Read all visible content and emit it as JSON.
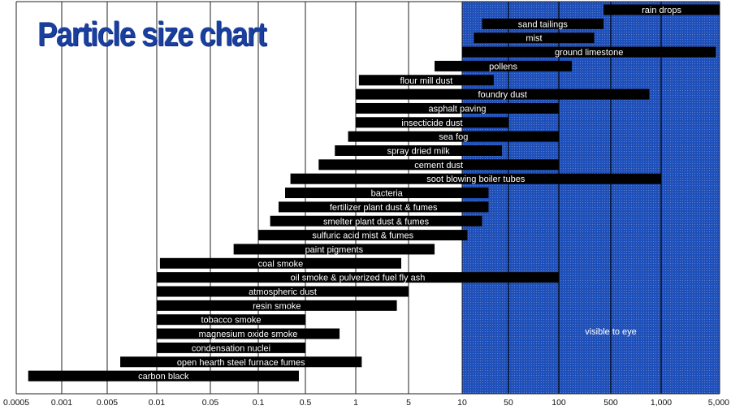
{
  "title": "Particle size chart",
  "chart_data": {
    "type": "bar",
    "orientation": "horizontal",
    "title": "Particle size chart",
    "xlabel": "",
    "ylabel": "",
    "x_scale": "log",
    "x_ticks": [
      "0.0005",
      "0.001",
      "0.005",
      "0.01",
      "0.05",
      "0.1",
      "0.5",
      "1",
      "5",
      "10",
      "50",
      "100",
      "500",
      "1,000",
      "5,000"
    ],
    "x_tick_values": [
      0.0005,
      0.001,
      0.005,
      0.01,
      0.05,
      0.1,
      0.5,
      1,
      5,
      10,
      50,
      100,
      500,
      1000,
      5000
    ],
    "xlim": [
      0.0005,
      5000
    ],
    "grid": true,
    "visible_region": {
      "label": "visible to eye",
      "from": 10,
      "to": 5000,
      "color": "#1f4fb8"
    },
    "bar_color": "#000000",
    "bar_label_color": "#ffffff",
    "series": [
      {
        "label": "rain drops",
        "min": 400,
        "max": 5000
      },
      {
        "label": "sand tailings",
        "min": 20,
        "max": 400
      },
      {
        "label": "mist",
        "min": 15,
        "max": 300
      },
      {
        "label": "ground limestone",
        "min": 10,
        "max": 4500
      },
      {
        "label": "pollens",
        "min": 7,
        "max": 150
      },
      {
        "label": "flour mill dust",
        "min": 1.1,
        "max": 30
      },
      {
        "label": "foundry dust",
        "min": 1,
        "max": 850
      },
      {
        "label": "asphalt paving",
        "min": 1,
        "max": 100
      },
      {
        "label": "insecticide dust",
        "min": 1,
        "max": 50
      },
      {
        "label": "sea fog",
        "min": 0.9,
        "max": 100
      },
      {
        "label": "spray dried milk",
        "min": 0.75,
        "max": 40
      },
      {
        "label": "cement dust",
        "min": 0.6,
        "max": 100
      },
      {
        "label": "soot blowing boiler tubes",
        "min": 0.3,
        "max": 1000
      },
      {
        "label": "bacteria",
        "min": 0.25,
        "max": 25
      },
      {
        "label": "fertilizer plant dust & fumes",
        "min": 0.2,
        "max": 25
      },
      {
        "label": "smelter plant dust & fumes",
        "min": 0.15,
        "max": 20
      },
      {
        "label": "sulfuric acid mist & fumes",
        "min": 0.1,
        "max": 12
      },
      {
        "label": "paint pigments",
        "min": 0.07,
        "max": 7
      },
      {
        "label": "coal smoke",
        "min": 0.011,
        "max": 4
      },
      {
        "label": "oil smoke & pulverized fuel fly ash",
        "min": 0.01,
        "max": 100
      },
      {
        "label": "atmospheric dust",
        "min": 0.01,
        "max": 5
      },
      {
        "label": "resin smoke",
        "min": 0.01,
        "max": 3.5
      },
      {
        "label": "tobacco smoke",
        "min": 0.01,
        "max": 0.5
      },
      {
        "label": "magnesium oxide smoke",
        "min": 0.01,
        "max": 0.8
      },
      {
        "label": "condensation nuclei",
        "min": 0.01,
        "max": 0.5
      },
      {
        "label": "open hearth steel furnace fumes",
        "min": 0.006,
        "max": 1.2
      },
      {
        "label": "carbon black",
        "min": 0.0006,
        "max": 0.4
      }
    ]
  }
}
